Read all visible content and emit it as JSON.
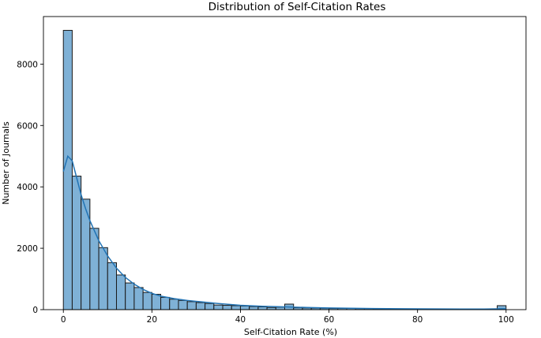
{
  "chart_data": {
    "type": "bar",
    "title": "Distribution of Self-Citation Rates",
    "xlabel": "Self-Citation Rate (%)",
    "ylabel": "Number of Journals",
    "xlim": [
      -4.5,
      104.5
    ],
    "ylim": [
      0,
      9550
    ],
    "xticks": [
      0,
      20,
      40,
      60,
      80,
      100
    ],
    "yticks": [
      0,
      2000,
      4000,
      6000,
      8000
    ],
    "grid": false,
    "bin_width": 2,
    "bin_start": 0,
    "counts": [
      9100,
      4350,
      3600,
      2650,
      2020,
      1530,
      1130,
      870,
      720,
      560,
      500,
      400,
      340,
      300,
      260,
      230,
      200,
      150,
      140,
      130,
      120,
      100,
      90,
      70,
      80,
      180,
      60,
      55,
      50,
      45,
      40,
      40,
      40,
      35,
      35,
      30,
      30,
      25,
      25,
      20,
      20,
      20,
      20,
      15,
      15,
      15,
      15,
      15,
      15,
      130
    ],
    "kde": {
      "x": [
        0,
        1,
        2,
        3,
        4,
        5,
        6,
        8,
        10,
        12,
        14,
        16,
        18,
        20,
        22,
        25,
        28,
        30,
        35,
        40,
        45,
        50,
        55,
        60,
        70,
        80,
        90,
        95,
        98,
        100
      ],
      "y": [
        4500,
        5000,
        4850,
        4300,
        3750,
        3300,
        2900,
        2250,
        1750,
        1350,
        1050,
        830,
        660,
        530,
        440,
        360,
        300,
        270,
        200,
        140,
        110,
        90,
        70,
        55,
        35,
        25,
        20,
        20,
        25,
        30
      ]
    }
  }
}
